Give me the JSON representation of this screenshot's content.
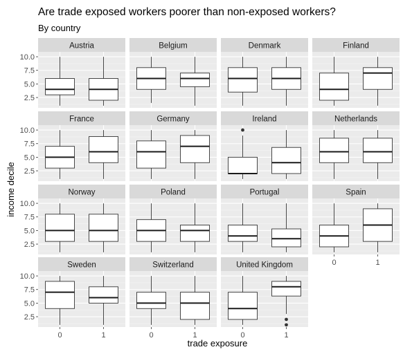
{
  "chart_data": {
    "type": "boxplot",
    "title": "Are trade exposed workers poorer than non-exposed workers?",
    "subtitle": "By country",
    "xlabel": "trade exposure",
    "ylabel": "income decile",
    "x_categories": [
      "0",
      "1"
    ],
    "y_ticks": [
      2.5,
      5.0,
      7.5,
      10.0
    ],
    "y_tick_labels": [
      "2.5",
      "5.0",
      "7.5",
      "10.0"
    ],
    "ylim": [
      0.6,
      10.9
    ],
    "grid": true,
    "facet_columns": 4,
    "panels": [
      {
        "name": "Austria",
        "boxes": [
          {
            "x": "0",
            "min": 1,
            "q1": 3,
            "median": 4,
            "q3": 6,
            "max": 10,
            "outliers": []
          },
          {
            "x": "1",
            "min": 1,
            "q1": 2,
            "median": 4,
            "q3": 6,
            "max": 10,
            "outliers": []
          }
        ]
      },
      {
        "name": "Belgium",
        "boxes": [
          {
            "x": "0",
            "min": 1.5,
            "q1": 4,
            "median": 6,
            "q3": 8,
            "max": 10,
            "outliers": []
          },
          {
            "x": "1",
            "min": 1,
            "q1": 4.5,
            "median": 6,
            "q3": 7,
            "max": 10,
            "outliers": []
          }
        ]
      },
      {
        "name": "Denmark",
        "boxes": [
          {
            "x": "0",
            "min": 1,
            "q1": 3.5,
            "median": 6,
            "q3": 8,
            "max": 10,
            "outliers": []
          },
          {
            "x": "1",
            "min": 1,
            "q1": 4,
            "median": 6,
            "q3": 8,
            "max": 10,
            "outliers": []
          }
        ]
      },
      {
        "name": "Finland",
        "boxes": [
          {
            "x": "0",
            "min": 1,
            "q1": 2,
            "median": 4,
            "q3": 7,
            "max": 10,
            "outliers": []
          },
          {
            "x": "1",
            "min": 1,
            "q1": 4,
            "median": 7,
            "q3": 8,
            "max": 10,
            "outliers": []
          }
        ]
      },
      {
        "name": "France",
        "boxes": [
          {
            "x": "0",
            "min": 1,
            "q1": 3,
            "median": 5,
            "q3": 7,
            "max": 10,
            "outliers": []
          },
          {
            "x": "1",
            "min": 1,
            "q1": 4,
            "median": 6,
            "q3": 8.8,
            "max": 10,
            "outliers": []
          }
        ]
      },
      {
        "name": "Germany",
        "boxes": [
          {
            "x": "0",
            "min": 1,
            "q1": 3,
            "median": 6,
            "q3": 8,
            "max": 10,
            "outliers": []
          },
          {
            "x": "1",
            "min": 1,
            "q1": 4,
            "median": 7,
            "q3": 9,
            "max": 10,
            "outliers": []
          }
        ]
      },
      {
        "name": "Ireland",
        "boxes": [
          {
            "x": "0",
            "min": 1,
            "q1": 2,
            "median": 2,
            "q3": 5,
            "max": 9,
            "outliers": [
              10
            ]
          },
          {
            "x": "1",
            "min": 1,
            "q1": 2,
            "median": 4,
            "q3": 6.8,
            "max": 10,
            "outliers": []
          }
        ]
      },
      {
        "name": "Netherlands",
        "boxes": [
          {
            "x": "0",
            "min": 1,
            "q1": 4,
            "median": 6,
            "q3": 8.5,
            "max": 10,
            "outliers": []
          },
          {
            "x": "1",
            "min": 1,
            "q1": 4,
            "median": 6,
            "q3": 8.5,
            "max": 10,
            "outliers": []
          }
        ]
      },
      {
        "name": "Norway",
        "boxes": [
          {
            "x": "0",
            "min": 1,
            "q1": 3,
            "median": 5,
            "q3": 8,
            "max": 10,
            "outliers": []
          },
          {
            "x": "1",
            "min": 1,
            "q1": 3,
            "median": 5,
            "q3": 8,
            "max": 10,
            "outliers": []
          }
        ]
      },
      {
        "name": "Poland",
        "boxes": [
          {
            "x": "0",
            "min": 1,
            "q1": 3,
            "median": 5,
            "q3": 7,
            "max": 10,
            "outliers": []
          },
          {
            "x": "1",
            "min": 1,
            "q1": 3,
            "median": 5,
            "q3": 6,
            "max": 10,
            "outliers": []
          }
        ]
      },
      {
        "name": "Portugal",
        "boxes": [
          {
            "x": "0",
            "min": 1,
            "q1": 3,
            "median": 4,
            "q3": 6,
            "max": 10,
            "outliers": []
          },
          {
            "x": "1",
            "min": 1,
            "q1": 2,
            "median": 3.5,
            "q3": 5.3,
            "max": 10,
            "outliers": []
          }
        ]
      },
      {
        "name": "Spain",
        "boxes": [
          {
            "x": "0",
            "min": 1,
            "q1": 2,
            "median": 4,
            "q3": 6,
            "max": 10,
            "outliers": []
          },
          {
            "x": "1",
            "min": 1,
            "q1": 3,
            "median": 6,
            "q3": 9,
            "max": 10,
            "outliers": []
          }
        ]
      },
      {
        "name": "Sweden",
        "boxes": [
          {
            "x": "0",
            "min": 1,
            "q1": 4,
            "median": 7,
            "q3": 9,
            "max": 10,
            "outliers": []
          },
          {
            "x": "1",
            "min": 1,
            "q1": 5,
            "median": 6,
            "q3": 8,
            "max": 10,
            "outliers": []
          }
        ]
      },
      {
        "name": "Switzerland",
        "boxes": [
          {
            "x": "0",
            "min": 1,
            "q1": 4,
            "median": 5,
            "q3": 7,
            "max": 10,
            "outliers": []
          },
          {
            "x": "1",
            "min": 1,
            "q1": 2,
            "median": 5,
            "q3": 7,
            "max": 10,
            "outliers": []
          }
        ]
      },
      {
        "name": "United Kingdom",
        "boxes": [
          {
            "x": "0",
            "min": 1,
            "q1": 2,
            "median": 4,
            "q3": 7,
            "max": 10,
            "outliers": []
          },
          {
            "x": "1",
            "min": 3,
            "q1": 6.3,
            "median": 8,
            "q3": 9,
            "max": 10,
            "outliers": [
              2,
              1
            ]
          }
        ]
      }
    ]
  }
}
